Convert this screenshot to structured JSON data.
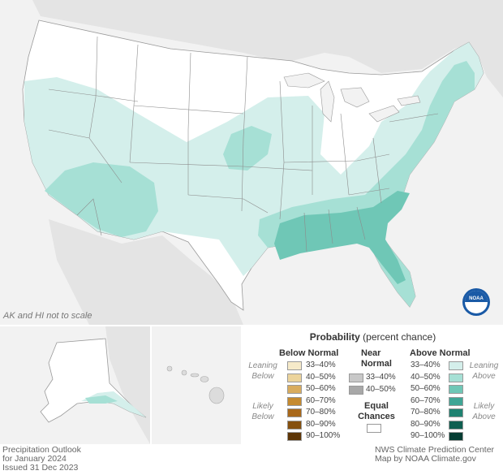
{
  "map": {
    "scale_note": "AK and HI not to scale",
    "logo_text": "NOAA"
  },
  "legend": {
    "title_bold": "Probability",
    "title_rest": "(percent chance)",
    "below": {
      "header": "Below Normal",
      "bins": [
        "33–40%",
        "40–50%",
        "50–60%",
        "60–70%",
        "70–80%",
        "80–90%",
        "90–100%"
      ],
      "colors": [
        "#f6eac9",
        "#ecd49c",
        "#d9ac5e",
        "#c58a2f",
        "#a8681a",
        "#85500f",
        "#5e3607"
      ]
    },
    "near": {
      "header_line1": "Near",
      "header_line2": "Normal",
      "bins": [
        "33–40%",
        "40–50%"
      ],
      "colors": [
        "#c8c8c8",
        "#a8a8a8"
      ]
    },
    "above": {
      "header": "Above Normal",
      "bins": [
        "33–40%",
        "40–50%",
        "50–60%",
        "60–70%",
        "70–80%",
        "80–90%",
        "90–100%"
      ],
      "colors": [
        "#d4efeb",
        "#a6e0d5",
        "#6fc7b6",
        "#3fa595",
        "#1f8271",
        "#0f5f51",
        "#053d33"
      ]
    },
    "equal": {
      "line1": "Equal",
      "line2": "Chances",
      "color": "#ffffff"
    },
    "leaning_below": [
      "Leaning",
      "Below"
    ],
    "likely_below": [
      "Likely",
      "Below"
    ],
    "leaning_above": [
      "Leaning",
      "Above"
    ],
    "likely_above": [
      "Likely",
      "Above"
    ]
  },
  "footer": {
    "left_line1": "Precipitation Outlook",
    "left_line2": "for January 2024",
    "left_line3": "Issued 31 Dec 2023",
    "right_line1": "NWS Climate Prediction Center",
    "right_line2": "Map by NOAA Climate.gov"
  }
}
